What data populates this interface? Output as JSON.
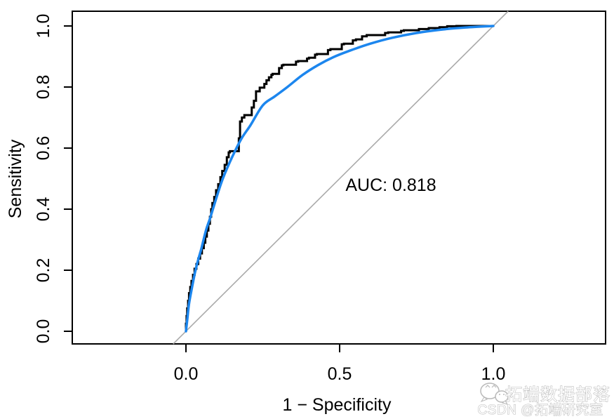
{
  "chart_data": {
    "type": "line",
    "title": "",
    "xlabel": "1 − Specificity",
    "ylabel": "Sensitivity",
    "xlim": [
      0,
      1
    ],
    "ylim": [
      0,
      1
    ],
    "grid": false,
    "legend": "none",
    "x_ticks": {
      "values": [
        0,
        0.5,
        1
      ],
      "labels": [
        "0.0",
        "0.5",
        "1.0"
      ]
    },
    "y_ticks": {
      "values": [
        0,
        0.2,
        0.4,
        0.6,
        0.8,
        1
      ],
      "labels": [
        "0.0",
        "0.2",
        "0.4",
        "0.6",
        "0.8",
        "1.0"
      ]
    },
    "annotation": {
      "text": "AUC: 0.818",
      "auc": 0.818
    },
    "series": [
      {
        "name": "empirical-roc",
        "style": "step",
        "color": "#000000",
        "points": [
          [
            0,
            0
          ],
          [
            0.002,
            0.025
          ],
          [
            0.004,
            0.05
          ],
          [
            0.007,
            0.075
          ],
          [
            0.01,
            0.1
          ],
          [
            0.014,
            0.125
          ],
          [
            0.018,
            0.145
          ],
          [
            0.023,
            0.165
          ],
          [
            0.028,
            0.185
          ],
          [
            0.034,
            0.205
          ],
          [
            0.04,
            0.22
          ],
          [
            0.046,
            0.238
          ],
          [
            0.052,
            0.255
          ],
          [
            0.058,
            0.272
          ],
          [
            0.063,
            0.29
          ],
          [
            0.068,
            0.31
          ],
          [
            0.073,
            0.33
          ],
          [
            0.078,
            0.352
          ],
          [
            0.082,
            0.375
          ],
          [
            0.086,
            0.4
          ],
          [
            0.092,
            0.42
          ],
          [
            0.098,
            0.44
          ],
          [
            0.105,
            0.462
          ],
          [
            0.112,
            0.482
          ],
          [
            0.118,
            0.505
          ],
          [
            0.126,
            0.525
          ],
          [
            0.133,
            0.545
          ],
          [
            0.139,
            0.57
          ],
          [
            0.143,
            0.586
          ],
          [
            0.172,
            0.59
          ],
          [
            0.176,
            0.632
          ],
          [
            0.182,
            0.687
          ],
          [
            0.19,
            0.7
          ],
          [
            0.214,
            0.708
          ],
          [
            0.221,
            0.733
          ],
          [
            0.228,
            0.755
          ],
          [
            0.24,
            0.786
          ],
          [
            0.255,
            0.798
          ],
          [
            0.262,
            0.81
          ],
          [
            0.27,
            0.822
          ],
          [
            0.278,
            0.832
          ],
          [
            0.282,
            0.84
          ],
          [
            0.303,
            0.843
          ],
          [
            0.312,
            0.862
          ],
          [
            0.317,
            0.871
          ],
          [
            0.358,
            0.873
          ],
          [
            0.365,
            0.883
          ],
          [
            0.394,
            0.885
          ],
          [
            0.4,
            0.893
          ],
          [
            0.42,
            0.896
          ],
          [
            0.426,
            0.906
          ],
          [
            0.462,
            0.908
          ],
          [
            0.47,
            0.921
          ],
          [
            0.507,
            0.924
          ],
          [
            0.514,
            0.94
          ],
          [
            0.543,
            0.942
          ],
          [
            0.553,
            0.953
          ],
          [
            0.573,
            0.956
          ],
          [
            0.588,
            0.966
          ],
          [
            0.648,
            0.97
          ],
          [
            0.658,
            0.977
          ],
          [
            0.7,
            0.979
          ],
          [
            0.709,
            0.984
          ],
          [
            0.758,
            0.986
          ],
          [
            0.79,
            0.99
          ],
          [
            0.825,
            0.993
          ],
          [
            0.85,
            0.996
          ],
          [
            0.88,
            0.999
          ],
          [
            0.9,
            1.0
          ],
          [
            1.0,
            1.0
          ]
        ]
      },
      {
        "name": "smoothed-roc",
        "style": "smooth",
        "color": "#1c86ee",
        "points": [
          [
            0,
            0
          ],
          [
            0.005,
            0.045
          ],
          [
            0.01,
            0.09
          ],
          [
            0.02,
            0.145
          ],
          [
            0.03,
            0.195
          ],
          [
            0.04,
            0.235
          ],
          [
            0.05,
            0.27
          ],
          [
            0.065,
            0.33
          ],
          [
            0.08,
            0.375
          ],
          [
            0.1,
            0.44
          ],
          [
            0.12,
            0.5
          ],
          [
            0.15,
            0.57
          ],
          [
            0.18,
            0.63
          ],
          [
            0.21,
            0.675
          ],
          [
            0.25,
            0.74
          ],
          [
            0.29,
            0.77
          ],
          [
            0.33,
            0.8
          ],
          [
            0.38,
            0.84
          ],
          [
            0.43,
            0.872
          ],
          [
            0.48,
            0.898
          ],
          [
            0.53,
            0.918
          ],
          [
            0.6,
            0.942
          ],
          [
            0.67,
            0.961
          ],
          [
            0.75,
            0.977
          ],
          [
            0.83,
            0.988
          ],
          [
            0.91,
            0.995
          ],
          [
            1.0,
            1.0
          ]
        ]
      },
      {
        "name": "chance-line",
        "style": "reference",
        "color": "#aaaaaa",
        "slope": 1,
        "intercept": 0
      }
    ]
  },
  "watermark": {
    "line1": "拓端数据部落",
    "line2": "CSDN @拓端研究室",
    "icon": "wechat-icon",
    "color": "#b9b9b9"
  },
  "colors": {
    "empirical_curve": "#000000",
    "smooth_curve": "#1c86ee",
    "reference_line": "#aaaaaa",
    "axis": "#000000"
  }
}
